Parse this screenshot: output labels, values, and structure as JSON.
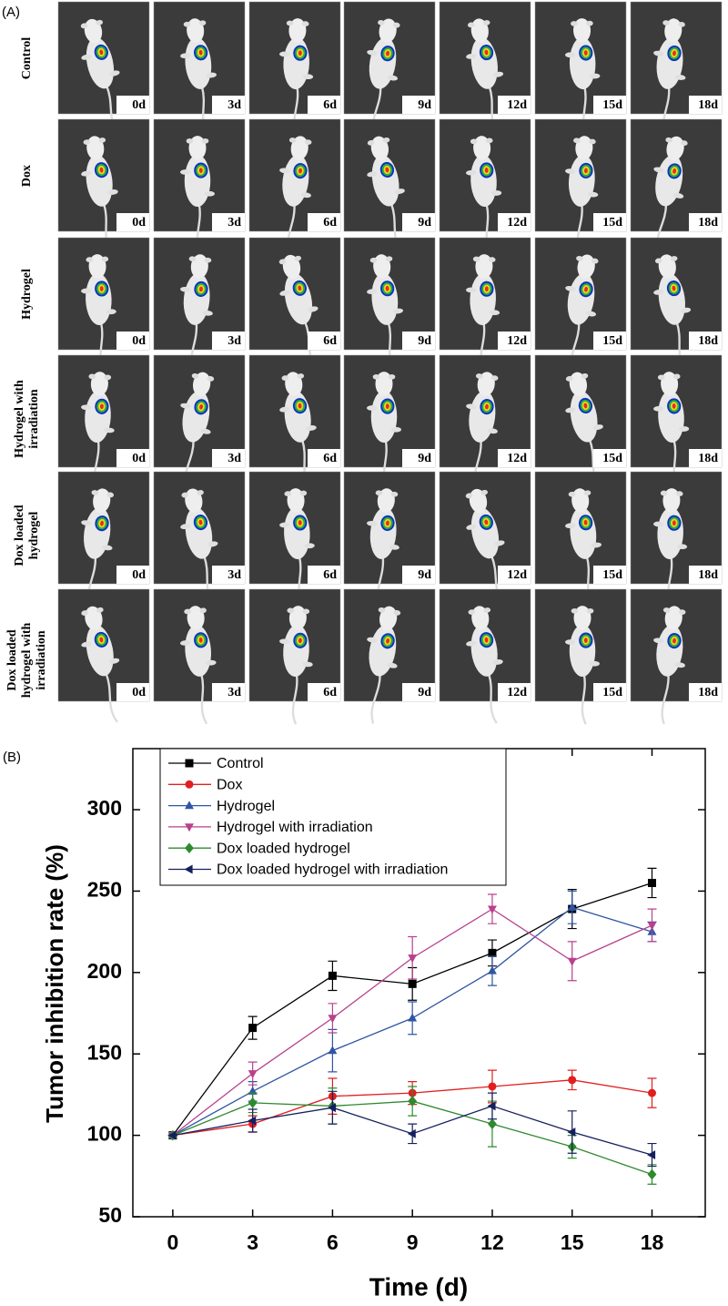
{
  "panel_a": {
    "label": "(A)",
    "rows": [
      "Control",
      "Dox",
      "Hydrogel",
      "Hydrogel with irradiation",
      "Dox loaded hydrogel",
      "Dox loaded hydrogel with irradiation"
    ],
    "days": [
      "0d",
      "3d",
      "6d",
      "9d",
      "12d",
      "15d",
      "18d"
    ]
  },
  "chart_data": {
    "type": "line",
    "label": "(B)",
    "x_label": "Time (d)",
    "y_label": "Tumor inhibition rate (%)",
    "x": [
      0,
      3,
      6,
      9,
      12,
      15,
      18
    ],
    "xlim": [
      -1.5,
      20
    ],
    "xticks": [
      0,
      3,
      6,
      9,
      12,
      15,
      18
    ],
    "ylim": [
      50,
      337.5
    ],
    "yticks": [
      50,
      100,
      150,
      200,
      250,
      300
    ],
    "grid": false,
    "legend": "top-left",
    "series": [
      {
        "name": "Control",
        "color": "#000000",
        "marker": "square",
        "values": [
          100,
          166,
          198,
          193,
          212,
          239,
          255
        ],
        "errors": [
          0,
          7,
          9,
          10,
          8,
          12,
          9
        ]
      },
      {
        "name": "Dox",
        "color": "#e02020",
        "marker": "circle",
        "values": [
          100,
          107,
          124,
          126,
          130,
          134,
          126
        ],
        "errors": [
          0,
          5,
          11,
          7,
          10,
          6,
          9
        ]
      },
      {
        "name": "Hydrogel",
        "color": "#2f55a4",
        "marker": "triangle-up",
        "values": [
          100,
          127,
          152,
          172,
          201,
          240,
          225
        ],
        "errors": [
          0,
          6,
          13,
          10,
          9,
          10,
          6
        ]
      },
      {
        "name": "Hydrogel with irradiation",
        "color": "#b8418e",
        "marker": "triangle-down",
        "values": [
          100,
          138,
          172,
          209,
          239,
          207,
          229
        ],
        "errors": [
          0,
          7,
          9,
          13,
          9,
          12,
          10
        ]
      },
      {
        "name": "Dox loaded hydrogel",
        "color": "#2f8a2f",
        "marker": "diamond",
        "values": [
          100,
          120,
          118,
          121,
          107,
          93,
          76
        ],
        "errors": [
          0,
          6,
          11,
          9,
          14,
          7,
          6
        ]
      },
      {
        "name": "Dox loaded hydrogel with irradiation",
        "color": "#16205e",
        "marker": "triangle-left",
        "values": [
          100,
          109,
          117,
          101,
          118,
          102,
          88
        ],
        "errors": [
          0,
          7,
          10,
          6,
          8,
          13,
          7
        ]
      }
    ]
  }
}
